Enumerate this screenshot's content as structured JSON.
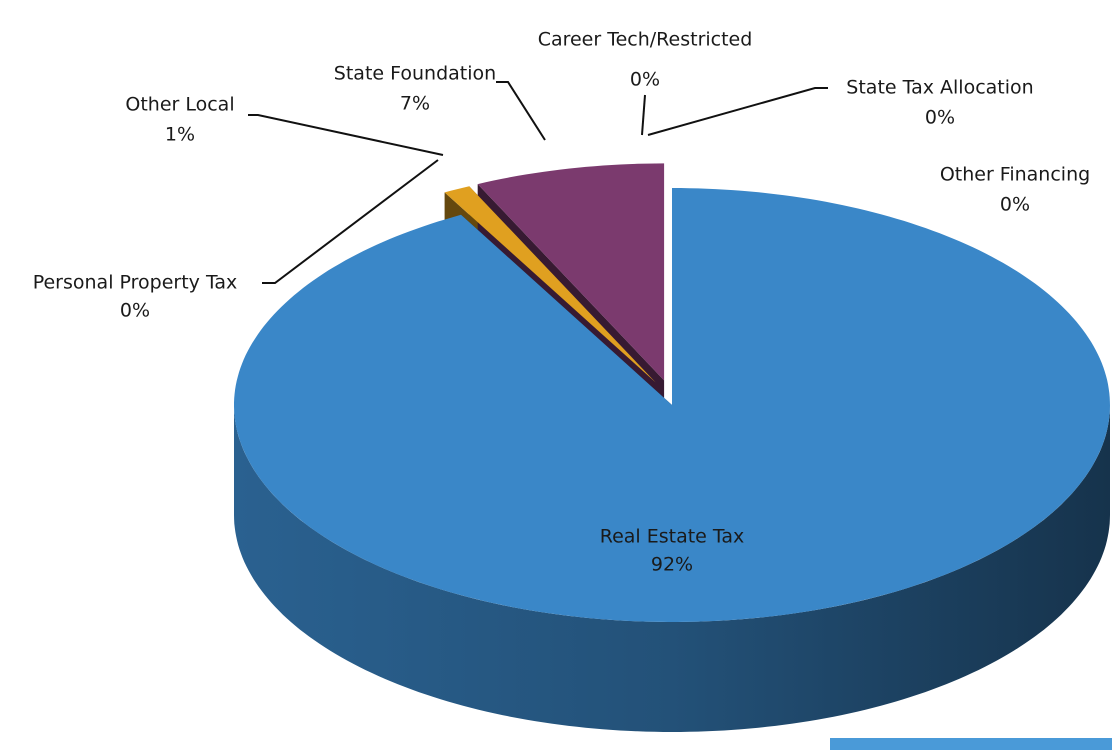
{
  "chart_data": {
    "type": "pie",
    "categories": [
      "Real Estate Tax",
      "Personal Property Tax",
      "Other Local",
      "State Foundation",
      "Career Tech/Restricted",
      "State Tax Allocation",
      "Other Financing"
    ],
    "values": [
      92,
      0,
      1,
      7,
      0,
      0,
      0
    ],
    "value_labels": [
      "92%",
      "0%",
      "1%",
      "7%",
      "0%",
      "0%",
      "0%"
    ],
    "colors": [
      "#3a87c8",
      "#3d5a1f",
      "#e0a020",
      "#7b3a6e",
      "#c06020",
      "#9ec3e6",
      "#4a7a30"
    ]
  }
}
